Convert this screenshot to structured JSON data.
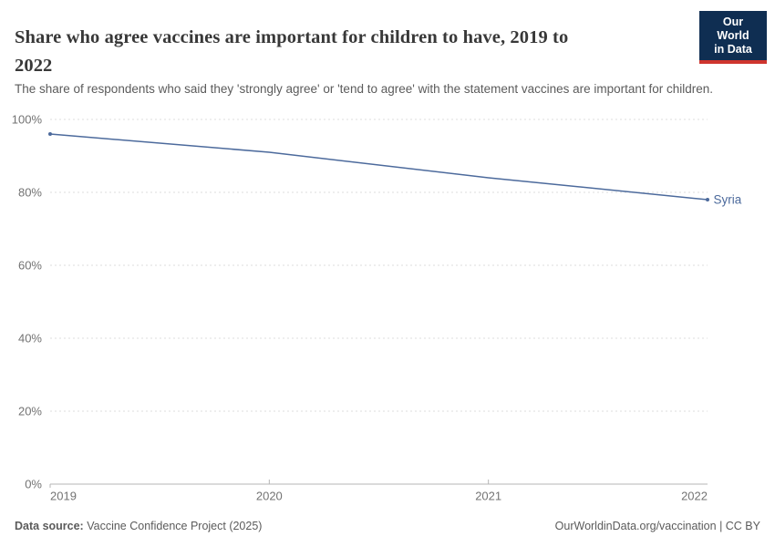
{
  "header": {
    "title_lines": [
      "Share who agree vaccines are important for children to have, 2019 to",
      "2022"
    ],
    "subtitle": "The share of respondents who said they 'strongly agree' or 'tend to agree' with the statement vaccines are important for children.",
    "logo": {
      "line1": "Our World",
      "line2": "in Data"
    }
  },
  "chart_data": {
    "type": "line",
    "title": "Share who agree vaccines are important for children to have, 2019 to 2022",
    "subtitle": "The share of respondents who said they 'strongly agree' or 'tend to agree' with the statement vaccines are important for children.",
    "xlim": [
      2019,
      2022
    ],
    "ylim": [
      0,
      100
    ],
    "x_ticks": [
      2019,
      2020,
      2021,
      2022
    ],
    "y_ticks": [
      0,
      20,
      40,
      60,
      80,
      100
    ],
    "y_tick_suffix": "%",
    "grid": "horizontal-dashed",
    "legend_position": "end-of-line-label",
    "series": [
      {
        "name": "Syria",
        "x": [
          2019,
          2020,
          2021,
          2022
        ],
        "values": [
          96,
          91,
          84,
          78
        ],
        "color": "#4c6a9c",
        "markers": "endpoints"
      }
    ]
  },
  "footer": {
    "source_label": "Data source:",
    "source_value": "Vaccine Confidence Project (2025)",
    "license": "OurWorldinData.org/vaccination | CC BY"
  },
  "colors": {
    "line": "#4c6a9c",
    "entity_label": "#4c6a9c",
    "gridline": "#dcdcdc",
    "axis": "#b5b5b5",
    "tick_label": "#737373",
    "title": "#383838",
    "subtitle": "#5b5b5b",
    "logo_bg": "#0f2e52",
    "logo_accent": "#cf352e",
    "background": "#ffffff"
  }
}
